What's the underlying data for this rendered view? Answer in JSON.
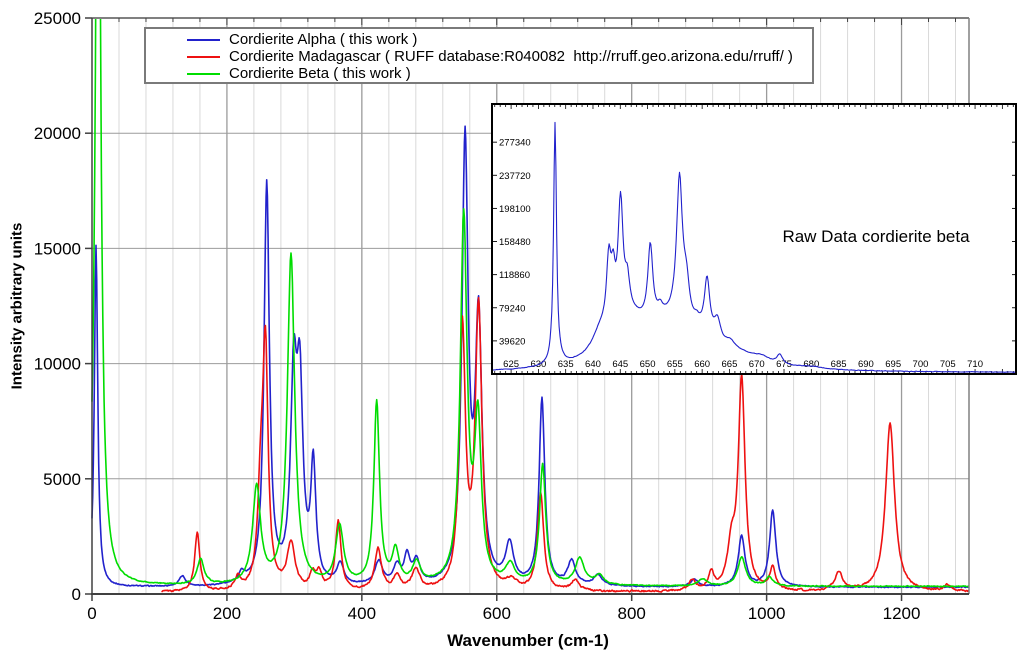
{
  "colors": {
    "background": "#ffffff",
    "axis": "#404040",
    "frame": "#808080",
    "grid_minor": "#d9d9d9",
    "grid_major": "#9b9b9b",
    "text": "#000000",
    "alpha_blue": "#2222cc",
    "madagascar_red": "#ee1111",
    "beta_green": "#00dd00",
    "inset_line": "#2222cc",
    "inset_border": "#000000"
  },
  "legend": {
    "items": [
      {
        "id": "cordierite-alpha",
        "label": "Cordierite Alpha ( this work )",
        "color": "#2222cc"
      },
      {
        "id": "cordierite-madagascar",
        "label": "Cordierite Madagascar ( RUFF database:R040082  http://rruff.geo.arizona.edu/rruff/ )",
        "color": "#ee1111"
      },
      {
        "id": "cordierite-beta",
        "label": "Cordierite Beta ( this work )",
        "color": "#00dd00"
      }
    ]
  },
  "chart_data": [
    {
      "type": "line",
      "title": "",
      "xlabel": "Wavenumber (cm-1)",
      "ylabel": "Intensity arbitrary units",
      "xlim": [
        0,
        1300
      ],
      "ylim": [
        0,
        25000
      ],
      "x_major_ticks": [
        0,
        200,
        400,
        600,
        800,
        1000,
        1200
      ],
      "x_minor_step": 40,
      "x_major_step": 200,
      "y_major_ticks": [
        0,
        5000,
        10000,
        15000,
        20000,
        25000
      ],
      "grid": "x-minor + x-major + y-major",
      "legend_position": "top-left",
      "sample_step": 1,
      "series": [
        {
          "id": "cordierite-alpha",
          "name": "Cordierite Alpha ( this work )",
          "color": "#2222cc",
          "baseline": 290,
          "noise": 40,
          "seed": 1,
          "peaks_center_height_width": [
            [
              6,
              14800,
              3
            ],
            [
              134,
              430,
              6
            ],
            [
              222,
              420,
              6
            ],
            [
              259,
              17400,
              4.8
            ],
            [
              299,
              8300,
              5.5
            ],
            [
              308,
              8000,
              5.5
            ],
            [
              328,
              5000,
              4.5
            ],
            [
              368,
              850,
              6
            ],
            [
              425,
              1000,
              7
            ],
            [
              452,
              800,
              6
            ],
            [
              467,
              1200,
              5
            ],
            [
              481,
              1000,
              6
            ],
            [
              553,
              19000,
              5.5
            ],
            [
              573,
              11200,
              6
            ],
            [
              619,
              1700,
              7
            ],
            [
              667,
              8100,
              5
            ],
            [
              711,
              1050,
              7
            ],
            [
              750,
              450,
              8
            ],
            [
              893,
              320,
              7
            ],
            [
              963,
              2200,
              6
            ],
            [
              1009,
              3300,
              5.5
            ]
          ]
        },
        {
          "id": "cordierite-madagascar",
          "name": "Cordierite Madagascar ( RUFF database:R040082  http://rruff.geo.arizona.edu/rruff/ )",
          "color": "#ee1111",
          "baseline": 80,
          "noise": 65,
          "seed": 2,
          "x_start": 103,
          "peaks_center_height_width": [
            [
              156,
              2550,
              4.5
            ],
            [
              216,
              550,
              5
            ],
            [
              250,
              3600,
              5
            ],
            [
              257,
              10300,
              4.8
            ],
            [
              295,
              2000,
              7
            ],
            [
              327,
              700,
              5
            ],
            [
              337,
              700,
              5
            ],
            [
              365,
              3000,
              5
            ],
            [
              424,
              1800,
              6
            ],
            [
              452,
              600,
              6
            ],
            [
              480,
              900,
              7
            ],
            [
              549,
              11200,
              5.5
            ],
            [
              573,
              12200,
              6
            ],
            [
              622,
              400,
              8
            ],
            [
              665,
              4200,
              5.5
            ],
            [
              716,
              450,
              7
            ],
            [
              890,
              450,
              6
            ],
            [
              918,
              700,
              5
            ],
            [
              948,
              1700,
              7
            ],
            [
              963,
              9100,
              6
            ],
            [
              1009,
              1000,
              5
            ],
            [
              1107,
              800,
              7
            ],
            [
              1183,
              7300,
              8
            ],
            [
              1268,
              280,
              6
            ]
          ]
        },
        {
          "id": "cordierite-beta",
          "name": "Cordierite Beta ( this work )",
          "color": "#00dd00",
          "baseline": 330,
          "noise": 35,
          "seed": 3,
          "peaks_center_height_width": [
            [
              9,
              40000,
              4.5
            ],
            [
              161,
              1100,
              6
            ],
            [
              244,
              4200,
              7
            ],
            [
              295,
              14300,
              6.5
            ],
            [
              367,
              2500,
              7
            ],
            [
              422,
              7900,
              5
            ],
            [
              450,
              1400,
              6
            ],
            [
              481,
              900,
              7
            ],
            [
              551,
              15800,
              6
            ],
            [
              572,
              6800,
              6
            ],
            [
              620,
              800,
              8
            ],
            [
              668,
              5200,
              5.5
            ],
            [
              723,
              1150,
              8
            ],
            [
              752,
              400,
              8
            ],
            [
              905,
              300,
              8
            ],
            [
              963,
              1250,
              7
            ],
            [
              1004,
              400,
              6
            ]
          ]
        }
      ]
    },
    {
      "type": "line",
      "title": "Raw Data cordierite beta",
      "xlabel": "",
      "ylabel": "",
      "xlim": [
        621.5,
        717.5
      ],
      "ylim": [
        0,
        323000
      ],
      "x_ticks": [
        625,
        630,
        635,
        640,
        645,
        650,
        655,
        660,
        665,
        670,
        675,
        680,
        685,
        690,
        695,
        700,
        705,
        710
      ],
      "x_minor_step": 1,
      "x_major_step": 5,
      "y_ticks": [
        39620,
        79240,
        118860,
        158480,
        198100,
        237720,
        277340
      ],
      "grid": "none",
      "sample_step": 0.15,
      "series": [
        {
          "id": "raw-beta",
          "name": "Raw Data cordierite beta",
          "color": "#2222cc",
          "baseline": 1500,
          "noise": 600,
          "seed": 4,
          "peaks_center_height_width": [
            [
              633.05,
              290000,
              0.32
            ],
            [
              641.3,
              22000,
              1.8
            ],
            [
              646.5,
              52000,
              4.5
            ],
            [
              654,
              38000,
              4.2
            ],
            [
              660.5,
              22000,
              5
            ],
            [
              668,
              10000,
              5.5
            ],
            [
              642.9,
              80000,
              0.5
            ],
            [
              643.7,
              50000,
              0.45
            ],
            [
              645.05,
              140000,
              0.55
            ],
            [
              646.3,
              35000,
              0.5
            ],
            [
              650.5,
              92000,
              0.55
            ],
            [
              652.3,
              12000,
              0.6
            ],
            [
              655.85,
              170000,
              0.65
            ],
            [
              657.1,
              45000,
              0.7
            ],
            [
              659,
              10000,
              0.7
            ],
            [
              660.9,
              66000,
              0.6
            ],
            [
              662.8,
              24000,
              0.7
            ],
            [
              665.2,
              9000,
              1
            ],
            [
              671,
              4000,
              1.5
            ],
            [
              674.2,
              11000,
              0.6
            ],
            [
              680,
              2500,
              2.5
            ]
          ]
        }
      ]
    }
  ]
}
